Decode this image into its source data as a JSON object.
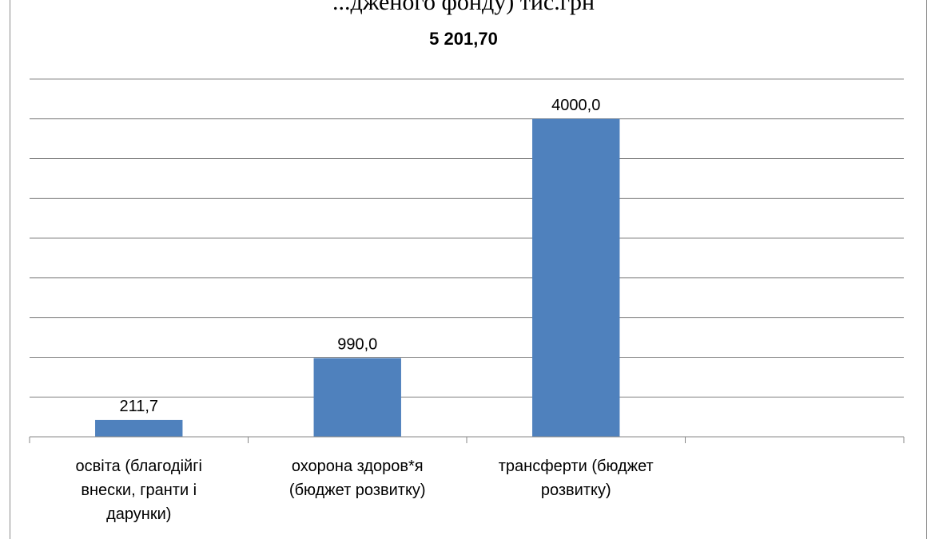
{
  "page": {
    "cut_off_heading": "...дженого фонду) тис.грн"
  },
  "chart_data": {
    "type": "bar",
    "title": "5 201,70",
    "categories": [
      [
        "освіта (благодійгі",
        "внески, гранти і",
        "дарунки)"
      ],
      [
        "охорона здоров*я",
        "(бюджет розвитку)"
      ],
      [
        "трансферти (бюджет",
        "розвитку)"
      ],
      [
        ""
      ]
    ],
    "values": [
      211.7,
      990.0,
      4000.0,
      null
    ],
    "data_labels": [
      "211,7",
      "990,0",
      "4000,0",
      ""
    ],
    "ylim": [
      0,
      4500
    ],
    "gridline_step": 500,
    "grid": true,
    "bar_color": "#4f81bd",
    "grid_color": "#878787"
  }
}
